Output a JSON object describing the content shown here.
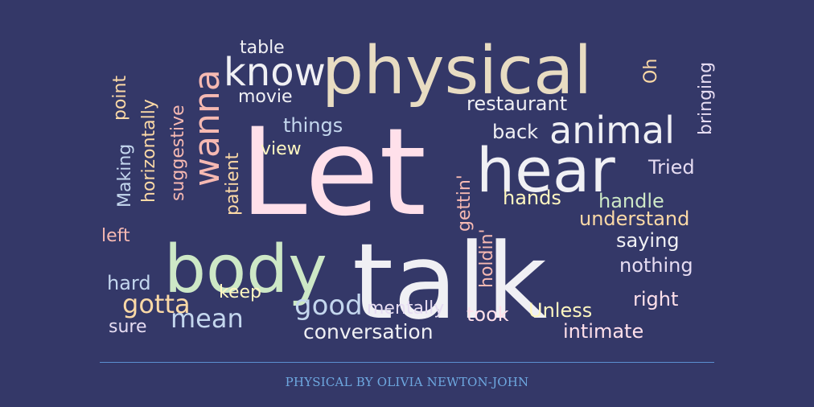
{
  "cloud": {
    "words": [
      {
        "text": "Let",
        "color": "#ffe0ea"
      },
      {
        "text": "talk",
        "color": "#f0f0f4"
      },
      {
        "text": "physical",
        "color": "#e8dcc2"
      },
      {
        "text": "body",
        "color": "#cde8c6"
      },
      {
        "text": "hear",
        "color": "#f0f0f4"
      },
      {
        "text": "animal",
        "color": "#f0f0f4"
      },
      {
        "text": "know",
        "color": "#f0f0f4"
      },
      {
        "text": "wanna",
        "color": "#f6b9b2"
      },
      {
        "text": "good",
        "color": "#c4d7ee"
      },
      {
        "text": "gotta",
        "color": "#fbd9a6"
      },
      {
        "text": "mean",
        "color": "#c4d7ee"
      },
      {
        "text": "conversation",
        "color": "#f0f0f4"
      },
      {
        "text": "restaurant",
        "color": "#f0f0f4"
      },
      {
        "text": "understand",
        "color": "#fbd9a6"
      },
      {
        "text": "nothing",
        "color": "#e6dcf2"
      },
      {
        "text": "saying",
        "color": "#f0f0f4"
      },
      {
        "text": "intimate",
        "color": "#ffe0ea"
      },
      {
        "text": "took",
        "color": "#ffe0ea"
      },
      {
        "text": "Unless",
        "color": "#fff7c0"
      },
      {
        "text": "right",
        "color": "#ffe0ea"
      },
      {
        "text": "Tried",
        "color": "#e6dcf2"
      },
      {
        "text": "handle",
        "color": "#cde8c6"
      },
      {
        "text": "hands",
        "color": "#fff7c0"
      },
      {
        "text": "back",
        "color": "#f0f0f4"
      },
      {
        "text": "things",
        "color": "#c4d7ee"
      },
      {
        "text": "view",
        "color": "#fff7c0"
      },
      {
        "text": "movie",
        "color": "#f0f0f4"
      },
      {
        "text": "table",
        "color": "#f0f0f4"
      },
      {
        "text": "keep",
        "color": "#fff7c0"
      },
      {
        "text": "mentally",
        "color": "#e6dcf2"
      },
      {
        "text": "hard",
        "color": "#c4d7ee"
      },
      {
        "text": "sure",
        "color": "#e6dcf2"
      },
      {
        "text": "left",
        "color": "#f6b9b2"
      },
      {
        "text": "Making",
        "color": "#c4d7ee"
      },
      {
        "text": "point",
        "color": "#fbd9a6"
      },
      {
        "text": "horizontally",
        "color": "#fbd9a6"
      },
      {
        "text": "suggestive",
        "color": "#f6b9b2"
      },
      {
        "text": "patient",
        "color": "#fbd9a6"
      },
      {
        "text": "gettin'",
        "color": "#f6b9b2"
      },
      {
        "text": "holdin'",
        "color": "#f6b9b2"
      },
      {
        "text": "Oh",
        "color": "#fbd9a6"
      },
      {
        "text": "bringing",
        "color": "#e6dcf2"
      }
    ]
  },
  "footer": {
    "caption": "PHYSICAL BY OLIVIA NEWTON-JOHN"
  }
}
